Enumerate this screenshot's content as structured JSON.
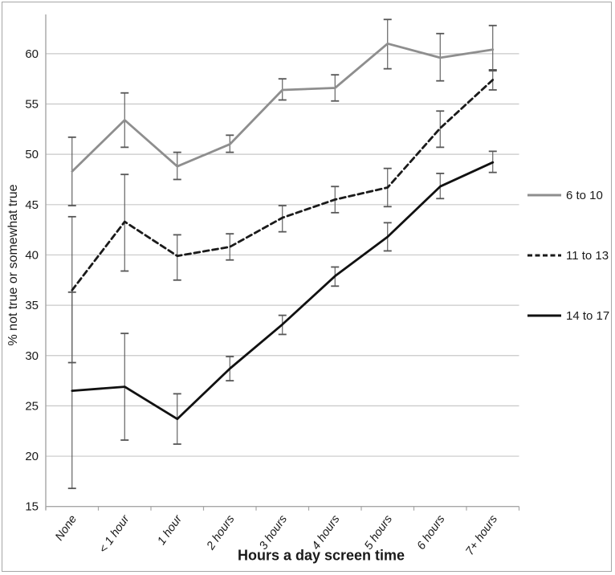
{
  "chart_data": {
    "type": "line",
    "title": "",
    "xlabel": "Hours a day screen time",
    "ylabel": "% not true or somewhat true",
    "categories": [
      "None",
      "< 1 hour",
      "1 hour",
      "2 hours",
      "3 hours",
      "4 hours",
      "5 hours",
      "6 hours",
      "7+ hours"
    ],
    "y_ticks": [
      15,
      20,
      25,
      30,
      35,
      40,
      45,
      50,
      55,
      60
    ],
    "ylim": [
      15,
      64
    ],
    "grid": true,
    "legend_position": "right",
    "error_bars": true,
    "series": [
      {
        "name": "6 to 10",
        "style": "solid",
        "color": "#8e8e8e",
        "values": [
          48.3,
          53.4,
          48.8,
          51.0,
          56.4,
          56.6,
          61.0,
          59.6,
          60.4
        ],
        "err_low": [
          44.9,
          50.7,
          47.5,
          50.2,
          55.4,
          55.3,
          58.5,
          57.3,
          58.4
        ],
        "err_high": [
          51.7,
          56.1,
          50.2,
          51.9,
          57.5,
          57.9,
          63.4,
          62.0,
          62.8
        ]
      },
      {
        "name": "11 to 13",
        "style": "dashed",
        "color": "#1a1a1a",
        "values": [
          36.5,
          43.3,
          39.9,
          40.8,
          43.7,
          45.5,
          46.7,
          52.6,
          57.4
        ],
        "err_low": [
          29.3,
          38.4,
          37.5,
          39.5,
          42.3,
          44.2,
          44.8,
          50.7,
          56.4
        ],
        "err_high": [
          43.8,
          48.0,
          42.0,
          42.1,
          44.9,
          46.8,
          48.6,
          54.3,
          58.3
        ]
      },
      {
        "name": "14 to 17",
        "style": "solid",
        "color": "#111111",
        "values": [
          26.5,
          26.9,
          23.7,
          28.7,
          33.1,
          37.9,
          41.8,
          46.8,
          49.2
        ],
        "err_low": [
          16.8,
          21.6,
          21.2,
          27.5,
          32.1,
          36.9,
          40.4,
          45.6,
          48.2
        ],
        "err_high": [
          36.3,
          32.2,
          26.2,
          29.9,
          34.0,
          38.8,
          43.2,
          48.1,
          50.3
        ]
      }
    ],
    "colors": {
      "gridline": "#c8c8c8",
      "axis": "#a6a6a6",
      "error_bar": "#565656",
      "text": "#1a1a1a"
    }
  }
}
